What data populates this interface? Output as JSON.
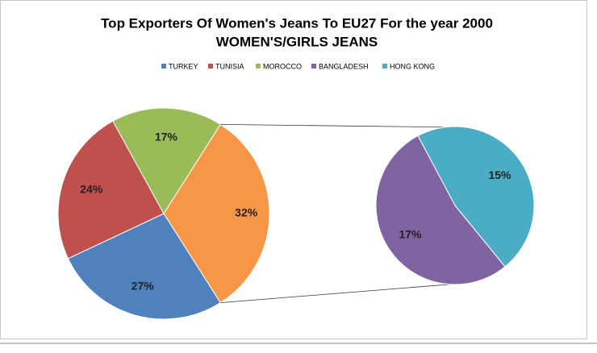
{
  "chart_data": {
    "type": "pie-of-pie",
    "title": "Top Exporters Of Women's Jeans To EU27 For the year 2000",
    "subtitle": "WOMEN'S/GIRLS  JEANS",
    "categories": [
      "TURKEY",
      "TUNISIA",
      "MOROCCO",
      "BANGLADESH",
      "HONG KONG"
    ],
    "values": [
      27,
      24,
      17,
      17,
      15
    ],
    "value_labels": [
      "27%",
      "24%",
      "17%",
      "17%",
      "15%"
    ],
    "colors": [
      "#4f81bd",
      "#c0504d",
      "#9bbb59",
      "#8064a2",
      "#4bacc6"
    ],
    "combined": {
      "value": 32,
      "value_label": "32%",
      "color": "#f79646"
    },
    "legend": "top"
  }
}
